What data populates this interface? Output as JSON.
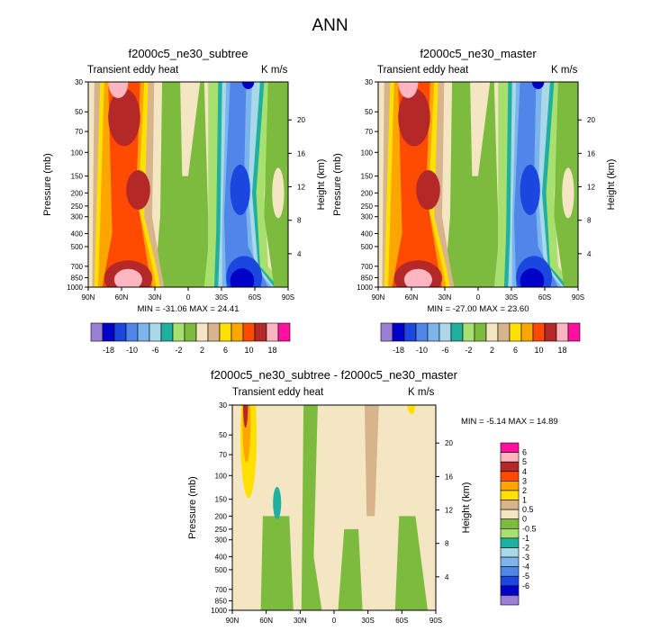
{
  "title": "ANN",
  "color_levels": [
    {
      "color": "#9a7fd6"
    },
    {
      "color": "#0000c8"
    },
    {
      "color": "#1c46e0"
    },
    {
      "color": "#4f86e8"
    },
    {
      "color": "#7cb4ee"
    },
    {
      "color": "#a9d8e8"
    },
    {
      "color": "#1fb0a0"
    },
    {
      "color": "#a8e070"
    },
    {
      "color": "#7cbb3e"
    },
    {
      "color": "#f4e6c2"
    },
    {
      "color": "#d7b48c"
    },
    {
      "color": "#ffe000"
    },
    {
      "color": "#ffa500"
    },
    {
      "color": "#ff4a00"
    },
    {
      "color": "#b42828"
    },
    {
      "color": "#ffb6c1"
    },
    {
      "color": "#ff10a0"
    }
  ],
  "chart_data": [
    {
      "type": "heatmap",
      "title": "f2000c5_ne30_subtree",
      "left_label": "Transient eddy heat",
      "right_label": "K m/s",
      "xlabel": "",
      "ylabel": "Pressure (mb)",
      "y2label": "Height (km)",
      "x_ticks": [
        "90N",
        "60N",
        "30N",
        "0",
        "30S",
        "60S",
        "90S"
      ],
      "y_ticks": [
        "30",
        "50",
        "70",
        "100",
        "150",
        "200",
        "250",
        "300",
        "400",
        "500",
        "700",
        "850",
        "1000"
      ],
      "y2_ticks": [
        "20",
        "16",
        "12",
        "8",
        "4"
      ],
      "min_label": "MIN = -31.06  MAX = 24.41",
      "colorbar_labels": [
        "-18",
        "-10",
        "-6",
        "-2",
        "2",
        "6",
        "10",
        "18"
      ],
      "plume_scale": 1.0
    },
    {
      "type": "heatmap",
      "title": "f2000c5_ne30_master",
      "left_label": "Transient eddy heat",
      "right_label": "K m/s",
      "xlabel": "",
      "ylabel": "Pressure (mb)",
      "y2label": "Height (km)",
      "x_ticks": [
        "90N",
        "60N",
        "30N",
        "0",
        "30S",
        "60S",
        "90S"
      ],
      "y_ticks": [
        "30",
        "50",
        "70",
        "100",
        "150",
        "200",
        "250",
        "300",
        "400",
        "500",
        "700",
        "850",
        "1000"
      ],
      "y2_ticks": [
        "20",
        "16",
        "12",
        "8",
        "4"
      ],
      "min_label": "MIN = -27.00  MAX = 23.60",
      "colorbar_labels": [
        "-18",
        "-10",
        "-6",
        "-2",
        "2",
        "6",
        "10",
        "18"
      ],
      "plume_scale": 1.0
    },
    {
      "type": "heatmap",
      "title": "f2000c5_ne30_subtree - f2000c5_ne30_master",
      "left_label": "Transient eddy heat",
      "right_label": "K m/s",
      "xlabel": "",
      "ylabel": "Pressure (mb)",
      "y2label": "Height (km)",
      "x_ticks": [
        "90N",
        "60N",
        "30N",
        "0",
        "30S",
        "60S",
        "90S"
      ],
      "y_ticks": [
        "30",
        "50",
        "70",
        "100",
        "150",
        "200",
        "250",
        "300",
        "400",
        "500",
        "700",
        "850",
        "1000"
      ],
      "y2_ticks": [
        "20",
        "16",
        "12",
        "8",
        "4"
      ],
      "min_label": "MIN = -5.14  MAX = 14.89",
      "colorbar_labels": [
        "6",
        "5",
        "4",
        "3",
        "2",
        "1",
        "0.5",
        "0",
        "-0.5",
        "-1",
        "-2",
        "-3",
        "-4",
        "-5",
        "-6"
      ]
    }
  ]
}
